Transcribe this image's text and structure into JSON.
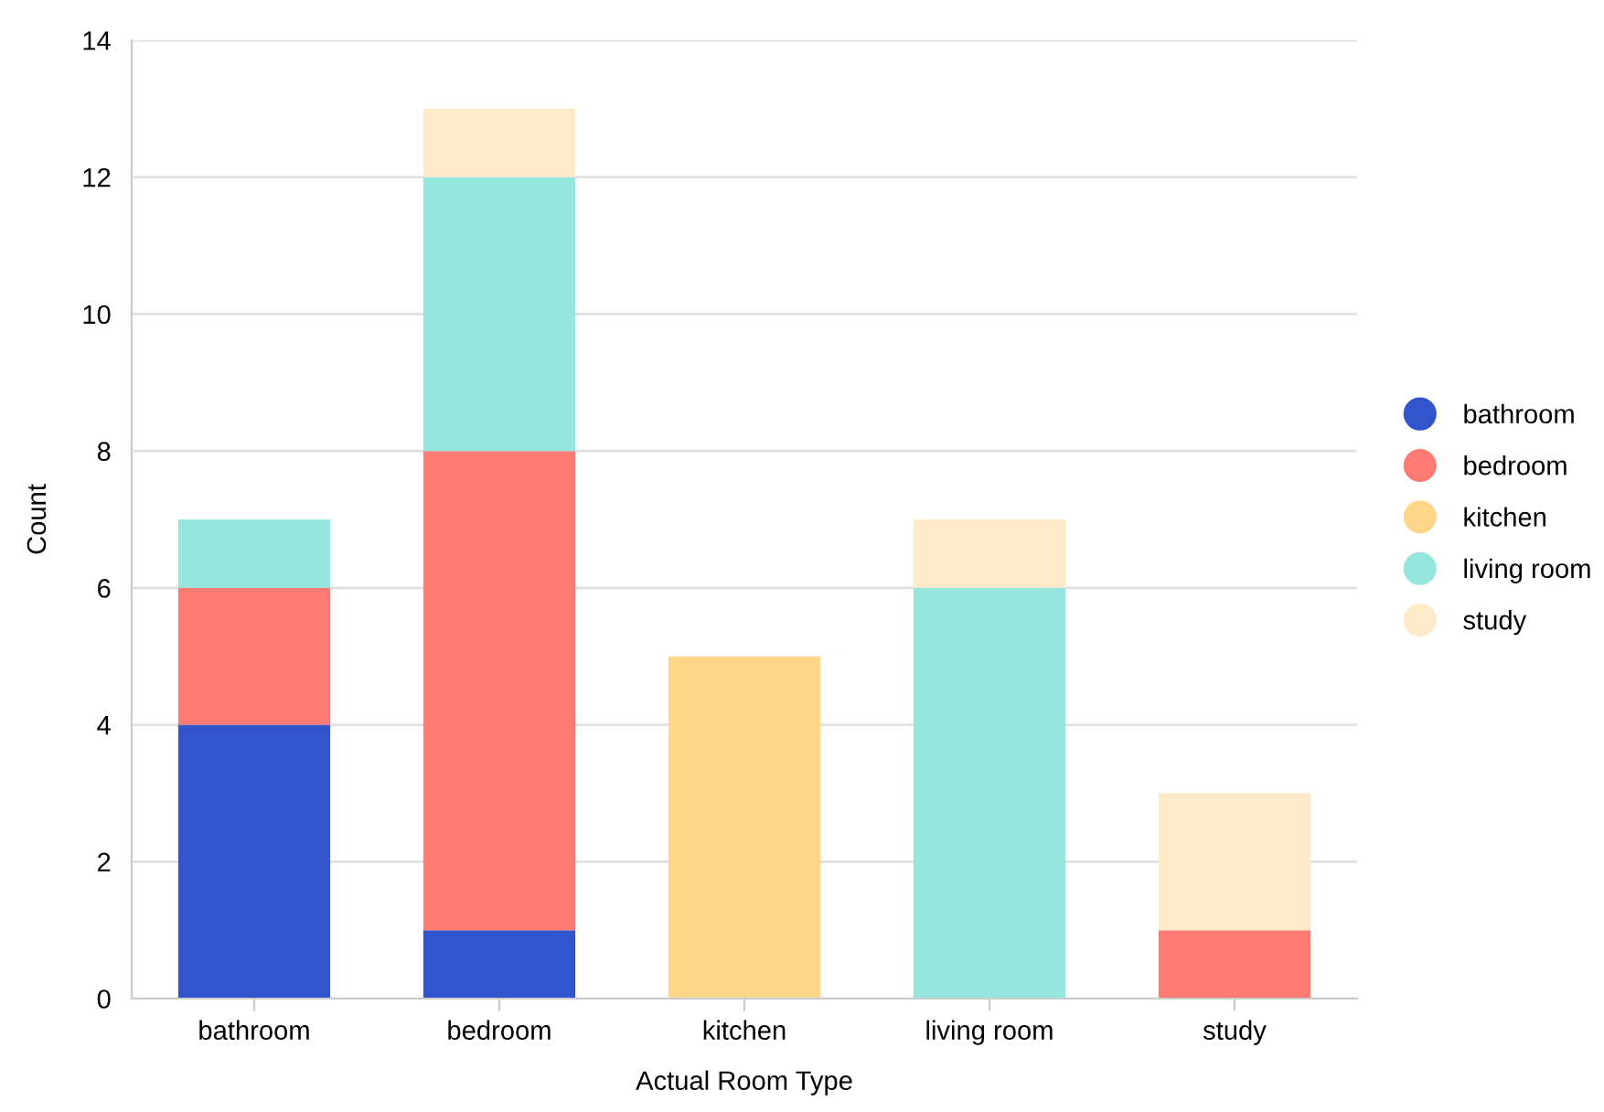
{
  "chart_data": {
    "type": "bar",
    "stacked": true,
    "xlabel": "Actual Room Type",
    "ylabel": "Count",
    "categories": [
      "bathroom",
      "bedroom",
      "kitchen",
      "living room",
      "study"
    ],
    "series": [
      {
        "name": "bathroom",
        "color": "#3355cc",
        "values": [
          4,
          1,
          null,
          null,
          null
        ]
      },
      {
        "name": "bedroom",
        "color": "#fd7b74",
        "values": [
          2,
          7,
          null,
          null,
          1
        ]
      },
      {
        "name": "kitchen",
        "color": "#ffd68a",
        "values": [
          null,
          null,
          5,
          null,
          null
        ]
      },
      {
        "name": "living room",
        "color": "#95e6dd",
        "values": [
          1,
          4,
          null,
          6,
          null
        ]
      },
      {
        "name": "study",
        "color": "#fee9c8",
        "values": [
          null,
          1,
          null,
          1,
          2
        ]
      }
    ],
    "ylim": [
      0,
      14
    ],
    "yticks": [
      0,
      2,
      4,
      6,
      8,
      10,
      12,
      14
    ],
    "grid": "y",
    "legend": "right"
  }
}
